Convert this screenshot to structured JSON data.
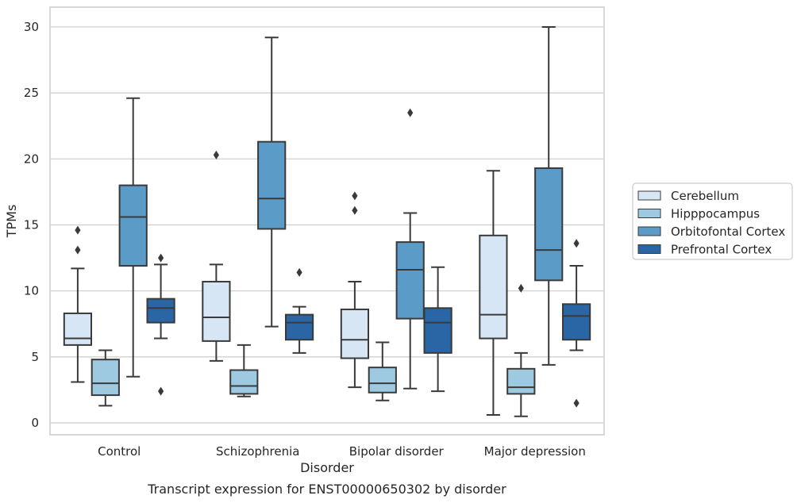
{
  "chart_data": {
    "type": "box",
    "title": "",
    "caption": "Transcript expression for ENST00000650302 by disorder",
    "xlabel": "Disorder",
    "ylabel": "TPMs",
    "ylim": [
      -0.9,
      31.5
    ],
    "yticks": [
      0,
      5,
      10,
      15,
      20,
      25,
      30
    ],
    "grid": "horizontal",
    "legend_position": "right",
    "categories": [
      "Control",
      "Schizophrenia",
      "Bipolar disorder",
      "Major depression"
    ],
    "series": [
      {
        "name": "Cerebellum",
        "color": "#d6e6f4",
        "boxes": [
          {
            "whisker_low": 3.1,
            "q1": 5.9,
            "median": 6.4,
            "q3": 8.3,
            "whisker_high": 11.7,
            "outliers": [
              13.1,
              14.6
            ]
          },
          {
            "whisker_low": 4.7,
            "q1": 6.2,
            "median": 8.0,
            "q3": 10.7,
            "whisker_high": 12.0,
            "outliers": [
              20.3
            ]
          },
          {
            "whisker_low": 2.7,
            "q1": 4.9,
            "median": 6.3,
            "q3": 8.6,
            "whisker_high": 10.7,
            "outliers": [
              16.1,
              17.2
            ]
          },
          {
            "whisker_low": 0.6,
            "q1": 6.4,
            "median": 8.2,
            "q3": 14.2,
            "whisker_high": 19.1,
            "outliers": []
          }
        ]
      },
      {
        "name": "Hipppocampus",
        "color": "#9ecae1",
        "boxes": [
          {
            "whisker_low": 1.3,
            "q1": 2.1,
            "median": 3.0,
            "q3": 4.8,
            "whisker_high": 5.5,
            "outliers": []
          },
          {
            "whisker_low": 2.0,
            "q1": 2.2,
            "median": 2.8,
            "q3": 4.0,
            "whisker_high": 5.9,
            "outliers": []
          },
          {
            "whisker_low": 1.7,
            "q1": 2.3,
            "median": 3.0,
            "q3": 4.2,
            "whisker_high": 6.1,
            "outliers": []
          },
          {
            "whisker_low": 0.5,
            "q1": 2.2,
            "median": 2.7,
            "q3": 4.1,
            "whisker_high": 5.3,
            "outliers": [
              10.2
            ]
          }
        ]
      },
      {
        "name": "Orbitofontal Cortex",
        "color": "#5b9bc8",
        "boxes": [
          {
            "whisker_low": 3.5,
            "q1": 11.9,
            "median": 15.6,
            "q3": 18.0,
            "whisker_high": 24.6,
            "outliers": []
          },
          {
            "whisker_low": 7.3,
            "q1": 14.7,
            "median": 17.0,
            "q3": 21.3,
            "whisker_high": 29.2,
            "outliers": []
          },
          {
            "whisker_low": 2.6,
            "q1": 7.9,
            "median": 11.6,
            "q3": 13.7,
            "whisker_high": 15.9,
            "outliers": [
              23.5
            ]
          },
          {
            "whisker_low": 4.4,
            "q1": 10.8,
            "median": 13.1,
            "q3": 19.3,
            "whisker_high": 30.0,
            "outliers": []
          }
        ]
      },
      {
        "name": "Prefrontal Cortex",
        "color": "#2a65a6",
        "boxes": [
          {
            "whisker_low": 6.4,
            "q1": 7.6,
            "median": 8.7,
            "q3": 9.4,
            "whisker_high": 12.0,
            "outliers": [
              12.5,
              2.4
            ]
          },
          {
            "whisker_low": 5.3,
            "q1": 6.3,
            "median": 7.6,
            "q3": 8.2,
            "whisker_high": 8.8,
            "outliers": [
              11.4
            ]
          },
          {
            "whisker_low": 2.4,
            "q1": 5.3,
            "median": 7.6,
            "q3": 8.7,
            "whisker_high": 11.8,
            "outliers": []
          },
          {
            "whisker_low": 5.5,
            "q1": 6.3,
            "median": 8.1,
            "q3": 9.0,
            "whisker_high": 11.9,
            "outliers": [
              13.6,
              1.5
            ]
          }
        ]
      }
    ]
  }
}
